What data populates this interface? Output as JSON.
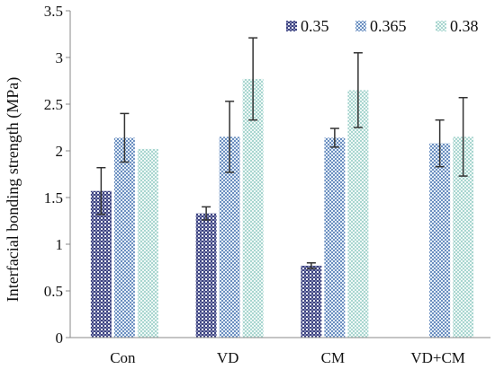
{
  "chart_data": {
    "type": "bar",
    "title": "",
    "xlabel": "",
    "ylabel": "Interfacial bonding strength (MPa)",
    "categories": [
      "Con",
      "VD",
      "CM",
      "VD+CM"
    ],
    "series": [
      {
        "name": "0.35",
        "values": [
          1.57,
          1.33,
          0.77,
          null
        ],
        "errors": [
          0.25,
          0.07,
          0.03,
          null
        ],
        "color": "#4a4f8c",
        "pattern": "dots-dark"
      },
      {
        "name": "0.365",
        "values": [
          2.14,
          2.15,
          2.14,
          2.08
        ],
        "errors": [
          0.26,
          0.38,
          0.1,
          0.25
        ],
        "color": "#7f9fc6",
        "pattern": "checker-blue"
      },
      {
        "name": "0.38",
        "values": [
          2.02,
          2.77,
          2.65,
          2.15
        ],
        "errors": [
          0.0,
          0.44,
          0.4,
          0.42
        ],
        "color": "#b9ddd8",
        "pattern": "dots-light"
      }
    ],
    "ylim": [
      0,
      3.5
    ],
    "yticks": [
      "0",
      "0.5",
      "1",
      "1.5",
      "2",
      "2.5",
      "3",
      "3.5"
    ],
    "error_bars": true,
    "grid": false,
    "legend_position": "top-right"
  }
}
